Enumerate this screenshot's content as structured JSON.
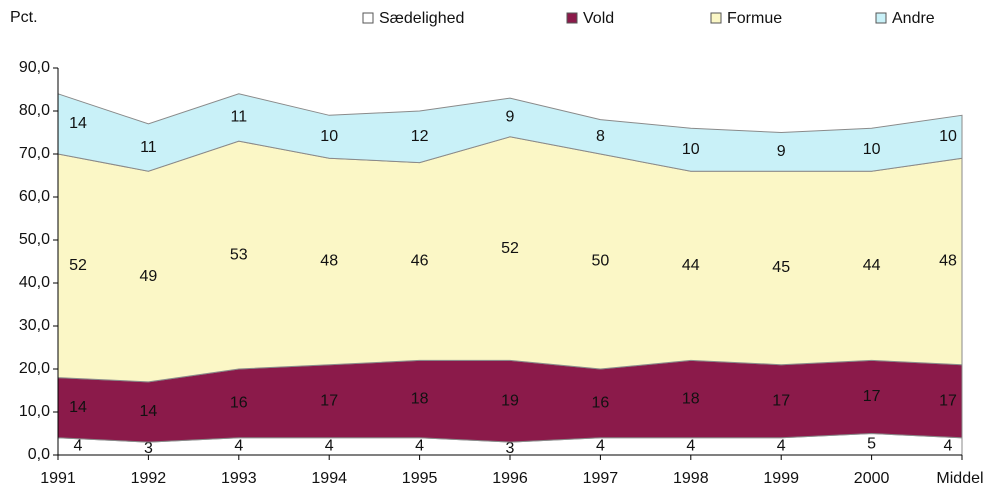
{
  "chart_data": {
    "type": "stacked_area",
    "y_label": "Pct.",
    "categories": [
      "1991",
      "1992",
      "1993",
      "1994",
      "1995",
      "1996",
      "1997",
      "1998",
      "1999",
      "2000",
      "Middel"
    ],
    "series": [
      {
        "name": "Sædelighed",
        "color": "#ffffff",
        "values": [
          4,
          3,
          4,
          4,
          4,
          3,
          4,
          4,
          4,
          5,
          4
        ]
      },
      {
        "name": "Vold",
        "color": "#8b1a4a",
        "values": [
          14,
          14,
          16,
          17,
          18,
          19,
          16,
          18,
          17,
          17,
          17
        ]
      },
      {
        "name": "Formue",
        "color": "#fbf7c6",
        "values": [
          52,
          49,
          53,
          48,
          46,
          52,
          50,
          44,
          45,
          44,
          48
        ]
      },
      {
        "name": "Andre",
        "color": "#c9f1f8",
        "values": [
          14,
          11,
          11,
          10,
          12,
          9,
          8,
          10,
          9,
          10,
          10
        ]
      }
    ],
    "ylim": [
      0,
      90
    ],
    "yticks": [
      {
        "value": 0,
        "label": "0,0"
      },
      {
        "value": 10,
        "label": "10,0"
      },
      {
        "value": 20,
        "label": "20,0"
      },
      {
        "value": 30,
        "label": "30,0"
      },
      {
        "value": 40,
        "label": "40,0"
      },
      {
        "value": 50,
        "label": "50,0"
      },
      {
        "value": 60,
        "label": "60,0"
      },
      {
        "value": 70,
        "label": "70,0"
      },
      {
        "value": 80,
        "label": "80,0"
      },
      {
        "value": 90,
        "label": "90,0"
      }
    ],
    "grid": false
  }
}
